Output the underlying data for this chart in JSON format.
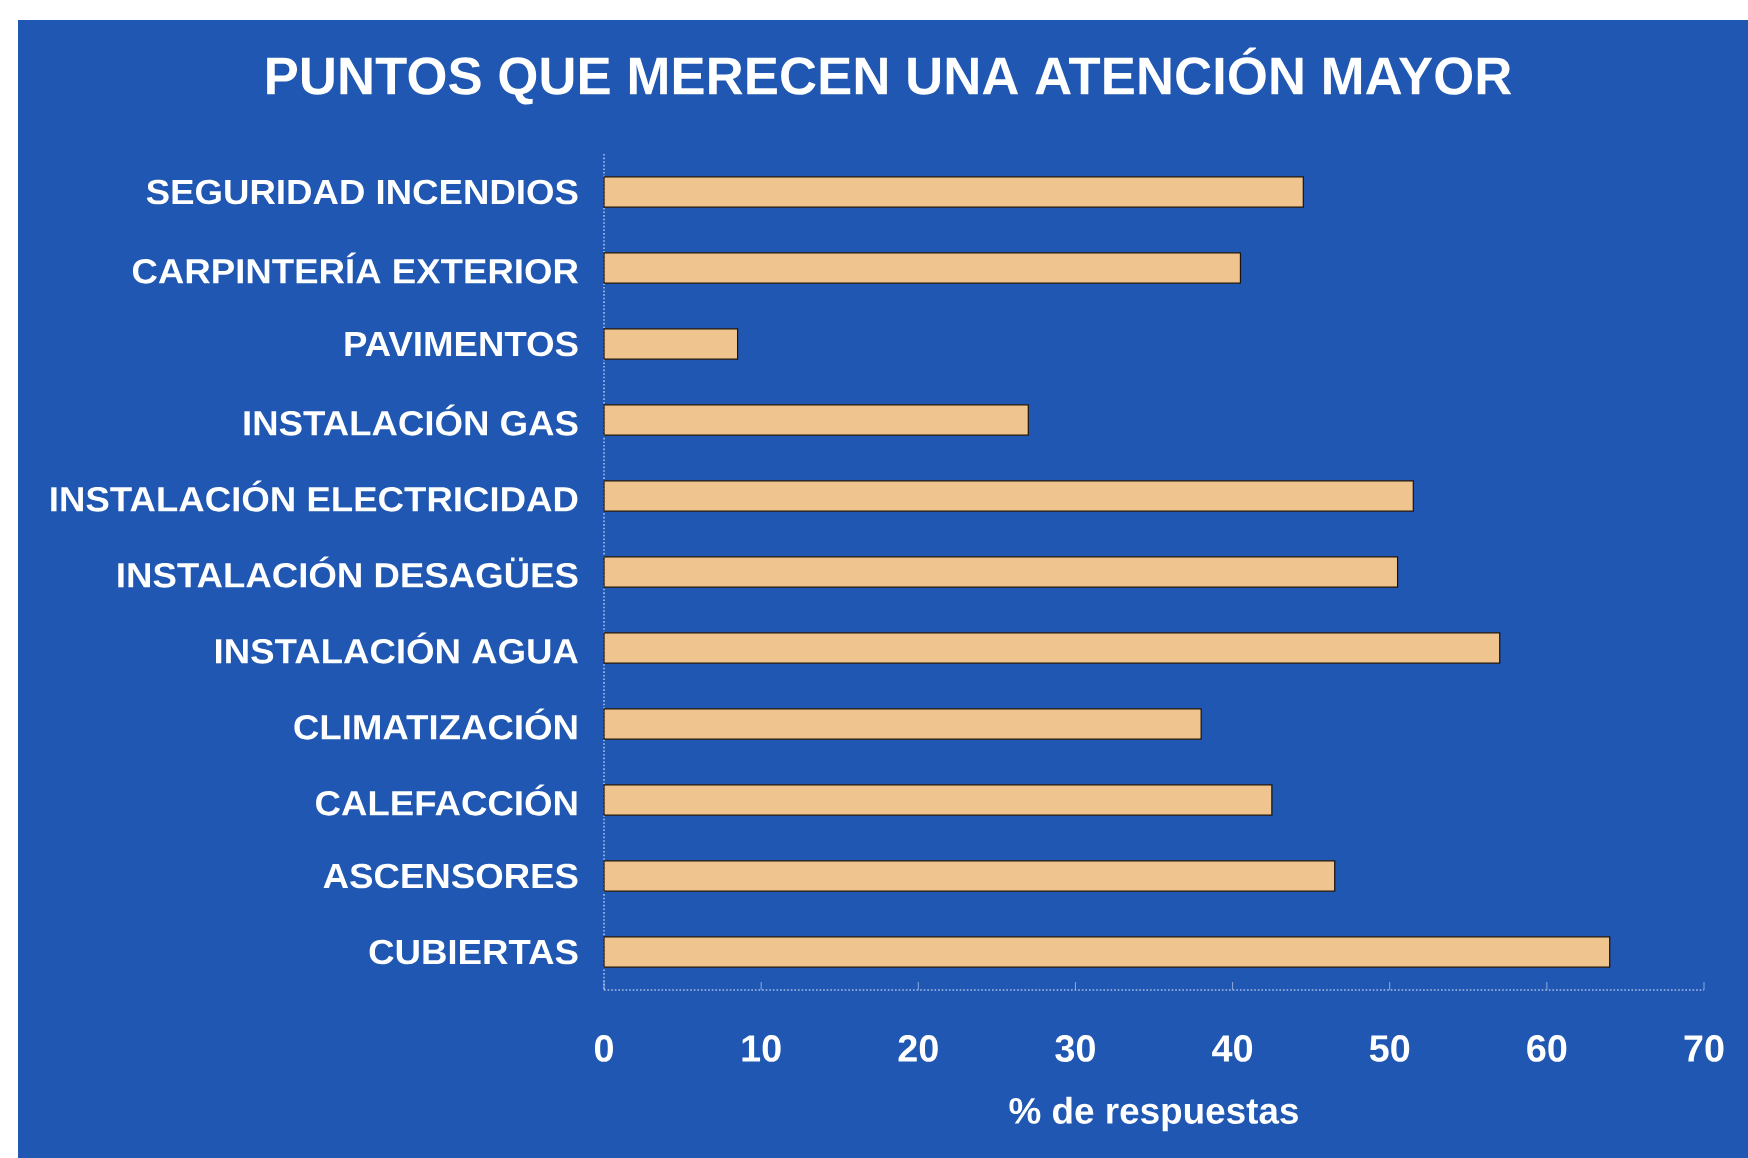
{
  "chart_data": {
    "type": "bar",
    "orientation": "horizontal",
    "title": "PUNTOS QUE MERECEN UNA ATENCIÓN MAYOR",
    "xlabel": "% de respuestas",
    "categories": [
      "SEGURIDAD INCENDIOS",
      "CARPINTERÍA EXTERIOR",
      "PAVIMENTOS",
      "INSTALACIÓN GAS",
      "INSTALACIÓN ELECTRICIDAD",
      "INSTALACIÓN DESAGÜES",
      "INSTALACIÓN AGUA",
      "CLIMATIZACIÓN",
      "CALEFACCIÓN",
      "ASCENSORES",
      "CUBIERTAS"
    ],
    "values": [
      44.5,
      40.5,
      8.5,
      27,
      51.5,
      50.5,
      57,
      38,
      42.5,
      46.5,
      64
    ],
    "color": "#efc48e",
    "xlim": [
      0,
      70
    ],
    "xticks": [
      0,
      10,
      20,
      30,
      40,
      50,
      60,
      70
    ]
  }
}
